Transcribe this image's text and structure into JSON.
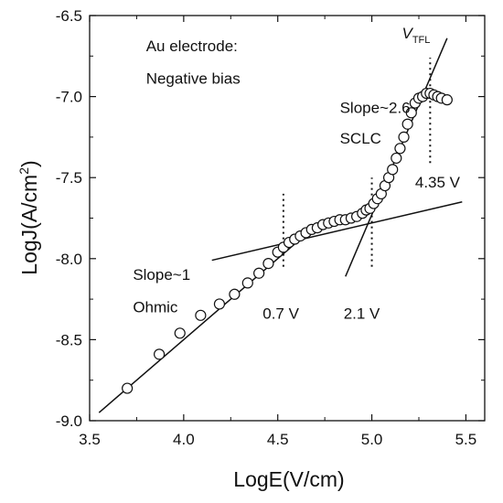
{
  "chart_data": {
    "type": "scatter",
    "xlabel": "LogE(V/cm)",
    "ylabel": "LogJ(A/cm",
    "ylabel_sup": "2",
    "ylabel_close": ")",
    "xlim": [
      3.5,
      5.6
    ],
    "ylim": [
      -9.0,
      -6.5
    ],
    "xticks": [
      3.5,
      4.0,
      4.5,
      5.0,
      5.5
    ],
    "xtick_labels": [
      "3.5",
      "4.0",
      "4.5",
      "5.0",
      "5.5"
    ],
    "yticks": [
      -9.0,
      -8.5,
      -8.0,
      -7.5,
      -7.0,
      -6.5
    ],
    "ytick_labels": [
      "-9.0",
      "-8.5",
      "-8.0",
      "-7.5",
      "-7.0",
      "-6.5"
    ],
    "grid": false,
    "series": [
      {
        "marker": "open-circle",
        "x": [
          3.7,
          3.87,
          3.98,
          4.09,
          4.19,
          4.27,
          4.34,
          4.4,
          4.45,
          4.5,
          4.53,
          4.56,
          4.59,
          4.62,
          4.65,
          4.68,
          4.71,
          4.74,
          4.77,
          4.8,
          4.83,
          4.86,
          4.89,
          4.92,
          4.95,
          4.97,
          4.99,
          5.01,
          5.03,
          5.05,
          5.07,
          5.09,
          5.11,
          5.13,
          5.15,
          5.17,
          5.19,
          5.21,
          5.23,
          5.25,
          5.27,
          5.29,
          5.31,
          5.33,
          5.35,
          5.37,
          5.4
        ],
        "y": [
          -8.8,
          -8.59,
          -8.46,
          -8.35,
          -8.28,
          -8.22,
          -8.15,
          -8.09,
          -8.03,
          -7.96,
          -7.93,
          -7.9,
          -7.88,
          -7.86,
          -7.84,
          -7.82,
          -7.81,
          -7.79,
          -7.78,
          -7.77,
          -7.76,
          -7.76,
          -7.75,
          -7.74,
          -7.72,
          -7.7,
          -7.69,
          -7.66,
          -7.63,
          -7.6,
          -7.55,
          -7.5,
          -7.45,
          -7.38,
          -7.32,
          -7.25,
          -7.17,
          -7.1,
          -7.04,
          -7.01,
          -7.0,
          -6.98,
          -6.98,
          -6.99,
          -7.0,
          -7.01,
          -7.02
        ]
      }
    ],
    "fit_lines": [
      {
        "x": [
          3.55,
          4.65
        ],
        "y": [
          -8.95,
          -7.85
        ]
      },
      {
        "x": [
          4.15,
          5.48
        ],
        "y": [
          -8.01,
          -7.65
        ]
      },
      {
        "x": [
          4.86,
          5.4
        ],
        "y": [
          -8.11,
          -6.64
        ]
      }
    ],
    "guides": [
      {
        "x": 4.53,
        "y": [
          -8.05,
          -7.6
        ]
      },
      {
        "x": 5.0,
        "y": [
          -8.05,
          -7.5
        ]
      },
      {
        "x": 5.31,
        "y": [
          -7.41,
          -6.76
        ]
      }
    ],
    "annotations": [
      {
        "text": "Au electrode:",
        "x": 3.8,
        "y": -6.72
      },
      {
        "text": "Negative bias",
        "x": 3.8,
        "y": -6.92
      },
      {
        "text": "Slope~2.6",
        "x": 4.83,
        "y": -7.1
      },
      {
        "text": "SCLC",
        "x": 4.83,
        "y": -7.29
      },
      {
        "text": "4.35 V",
        "x": 5.23,
        "y": -7.56
      },
      {
        "text": "Slope~1",
        "x": 3.73,
        "y": -8.13
      },
      {
        "text": "Ohmic",
        "x": 3.73,
        "y": -8.33
      },
      {
        "text": "0.7 V",
        "x": 4.42,
        "y": -8.37
      },
      {
        "text": "2.1 V",
        "x": 4.85,
        "y": -8.37
      }
    ],
    "vtfl": {
      "main": "V",
      "sub": "TFL",
      "x": 5.16,
      "y": -6.64
    }
  }
}
